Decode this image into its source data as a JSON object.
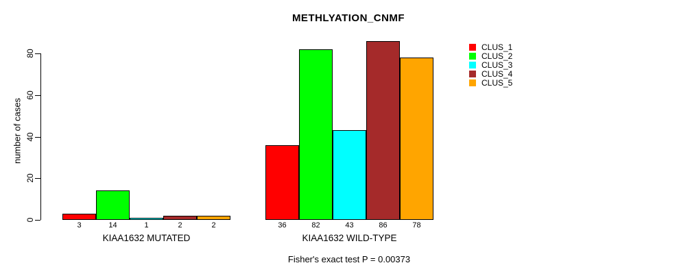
{
  "chart_data": {
    "type": "bar",
    "title": "METHLYATION_CNMF",
    "ylabel": "number of cases",
    "annotation": "Fisher's exact test P = 0.00373",
    "categories": [
      "KIAA1632 MUTATED",
      "KIAA1632 WILD-TYPE"
    ],
    "series": [
      {
        "name": "CLUS_1",
        "color": "#FF0000",
        "values": [
          3,
          36
        ]
      },
      {
        "name": "CLUS_2",
        "color": "#00FF00",
        "values": [
          14,
          82
        ]
      },
      {
        "name": "CLUS_3",
        "color": "#00FFFF",
        "values": [
          1,
          43
        ]
      },
      {
        "name": "CLUS_4",
        "color": "#A52A2A",
        "values": [
          2,
          86
        ]
      },
      {
        "name": "CLUS_5",
        "color": "#FFA500",
        "values": [
          2,
          78
        ]
      }
    ],
    "bar_value_labels": [
      [
        "3",
        "14",
        "1",
        "2",
        "2"
      ],
      [
        "36",
        "82",
        "43",
        "86",
        "78"
      ]
    ],
    "yticks": [
      0,
      20,
      40,
      60,
      80
    ],
    "ylim": [
      0,
      86
    ],
    "grid": false,
    "legend_position": "right"
  }
}
